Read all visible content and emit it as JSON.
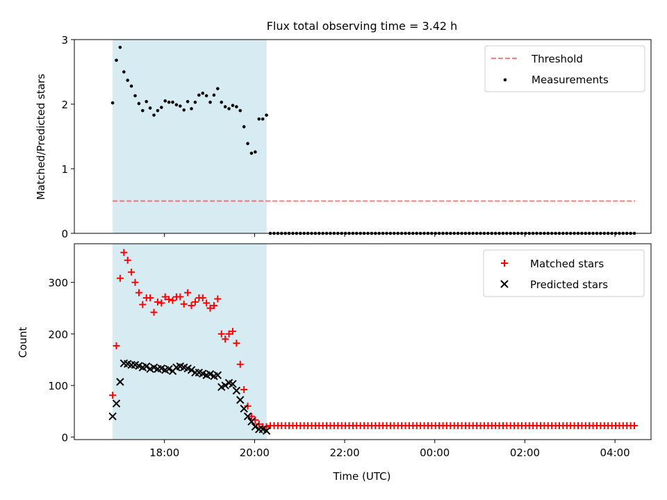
{
  "chart_data": {
    "type": "scatter",
    "title": "Flux total observing time = 3.42 h",
    "xlabel": "Time (UTC)",
    "x_range_hours": [
      16.0,
      28.8
    ],
    "x_ticks": [
      {
        "h": 18,
        "label": "18:00"
      },
      {
        "h": 20,
        "label": "20:00"
      },
      {
        "h": 22,
        "label": "22:00"
      },
      {
        "h": 24,
        "label": "00:00"
      },
      {
        "h": 26,
        "label": "02:00"
      },
      {
        "h": 28,
        "label": "04:00"
      }
    ],
    "observing_window_hours": [
      16.85,
      20.27
    ],
    "colors": {
      "window": "#add8e6",
      "threshold": "#ff0000",
      "matched": "#ff0000",
      "predicted": "#000000",
      "measurements": "#000000"
    },
    "top_panel": {
      "ylabel": "Matched/Predicted stars",
      "ylim": [
        0,
        3
      ],
      "yticks": [
        0,
        1,
        2,
        3
      ],
      "legend": {
        "threshold_label": "Threshold",
        "measurements_label": "Measurements"
      },
      "threshold": 0.5,
      "threshold_x_range": [
        16.85,
        28.45
      ],
      "ratio_x_start": 16.85,
      "ratio_step": 0.0833,
      "ratio": [
        2.02,
        2.68,
        2.88,
        2.5,
        2.37,
        2.28,
        2.13,
        2.01,
        1.9,
        2.04,
        1.94,
        1.83,
        1.9,
        1.95,
        2.05,
        2.03,
        2.03,
        1.99,
        1.97,
        1.91,
        2.04,
        1.93,
        2.03,
        2.14,
        2.17,
        2.13,
        2.03,
        2.14,
        2.24,
        2.03,
        1.96,
        1.93,
        1.98,
        1.96,
        1.9,
        1.65,
        1.39,
        1.24,
        1.26,
        1.77,
        1.77,
        1.83
      ],
      "zero_x_start": 20.35,
      "zero_x_end": 28.45,
      "zero_step": 0.0833
    },
    "bottom_panel": {
      "ylabel": "Count",
      "ylim": [
        -5,
        375
      ],
      "yticks": [
        0,
        100,
        200,
        300
      ],
      "legend": {
        "matched_label": "Matched stars",
        "predicted_label": "Predicted stars"
      },
      "x_start": 16.85,
      "step": 0.0833,
      "matched": [
        81,
        177,
        308,
        358,
        343,
        320,
        300,
        280,
        257,
        270,
        270,
        242,
        262,
        260,
        272,
        267,
        265,
        272,
        272,
        258,
        280,
        255,
        262,
        270,
        270,
        260,
        250,
        255,
        268,
        200,
        190,
        200,
        205,
        182,
        141,
        92,
        60,
        40,
        33,
        25,
        20,
        20
      ],
      "predicted": [
        40,
        65,
        107,
        143,
        142,
        140,
        140,
        138,
        135,
        137,
        132,
        135,
        132,
        133,
        130,
        132,
        128,
        135,
        137,
        135,
        133,
        130,
        125,
        125,
        123,
        120,
        122,
        118,
        120,
        97,
        100,
        105,
        103,
        90,
        72,
        55,
        40,
        30,
        20,
        15,
        15,
        12
      ],
      "tail_x_start": 20.35,
      "tail_x_end": 28.45,
      "tail_step": 0.0833,
      "tail_matched": 22
    }
  }
}
